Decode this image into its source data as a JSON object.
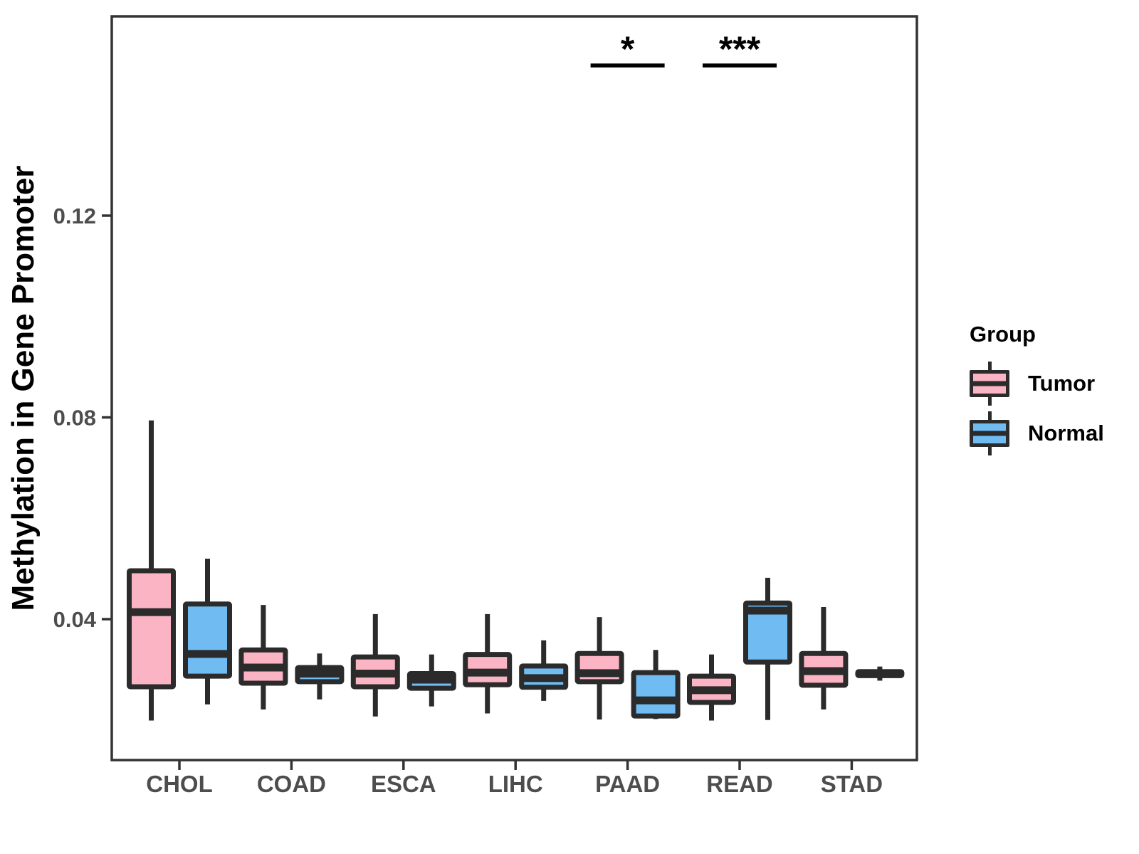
{
  "chart_data": {
    "type": "boxplot",
    "title": "",
    "xlabel": "",
    "ylabel": "Methylation in Gene Promoter",
    "categories": [
      "CHOL",
      "COAD",
      "ESCA",
      "LIHC",
      "PAAD",
      "READ",
      "STAD"
    ],
    "yticks": [
      0.04,
      0.08,
      0.12
    ],
    "ylim": [
      0.012,
      0.16
    ],
    "grid": false,
    "legend": {
      "title": "Group",
      "position": "right",
      "entries": [
        {
          "label": "Tumor",
          "color": "#FAB4C4"
        },
        {
          "label": "Normal",
          "color": "#6FBBF2"
        }
      ]
    },
    "series": [
      {
        "name": "Tumor",
        "color": "#FAB4C4",
        "boxes": [
          {
            "category": "CHOL",
            "low": 0.0199,
            "q1": 0.0266,
            "median": 0.0414,
            "q3": 0.0496,
            "high": 0.0794
          },
          {
            "category": "COAD",
            "low": 0.0221,
            "q1": 0.0273,
            "median": 0.0304,
            "q3": 0.0339,
            "high": 0.0428
          },
          {
            "category": "ESCA",
            "low": 0.0207,
            "q1": 0.0266,
            "median": 0.0292,
            "q3": 0.0325,
            "high": 0.041
          },
          {
            "category": "LIHC",
            "low": 0.0213,
            "q1": 0.027,
            "median": 0.0294,
            "q3": 0.033,
            "high": 0.041
          },
          {
            "category": "PAAD",
            "low": 0.0201,
            "q1": 0.0276,
            "median": 0.0293,
            "q3": 0.0332,
            "high": 0.0404
          },
          {
            "category": "READ",
            "low": 0.0199,
            "q1": 0.0235,
            "median": 0.0259,
            "q3": 0.0287,
            "high": 0.033
          },
          {
            "category": "STAD",
            "low": 0.0221,
            "q1": 0.0269,
            "median": 0.0297,
            "q3": 0.0332,
            "high": 0.0424
          }
        ]
      },
      {
        "name": "Normal",
        "color": "#6FBBF2",
        "boxes": [
          {
            "category": "CHOL",
            "low": 0.0231,
            "q1": 0.0287,
            "median": 0.0331,
            "q3": 0.043,
            "high": 0.052
          },
          {
            "category": "COAD",
            "low": 0.0241,
            "q1": 0.0276,
            "median": 0.0292,
            "q3": 0.0304,
            "high": 0.0332
          },
          {
            "category": "ESCA",
            "low": 0.0227,
            "q1": 0.0263,
            "median": 0.028,
            "q3": 0.0292,
            "high": 0.033
          },
          {
            "category": "LIHC",
            "low": 0.0238,
            "q1": 0.0265,
            "median": 0.0283,
            "q3": 0.0307,
            "high": 0.0358
          },
          {
            "category": "PAAD",
            "low": 0.0202,
            "q1": 0.0208,
            "median": 0.0239,
            "q3": 0.0294,
            "high": 0.0339
          },
          {
            "category": "READ",
            "low": 0.02,
            "q1": 0.0315,
            "median": 0.0417,
            "q3": 0.0432,
            "high": 0.0482
          },
          {
            "category": "STAD",
            "low": 0.0278,
            "q1": 0.0288,
            "median": 0.0292,
            "q3": 0.0296,
            "high": 0.0306
          }
        ]
      }
    ],
    "significance": [
      {
        "category": "PAAD",
        "label": "*"
      },
      {
        "category": "READ",
        "label": "***"
      }
    ],
    "style": {
      "box_stroke": "#2B2B2B",
      "axis_color": "#333333",
      "tick_label_color": "#4D4D4D",
      "annotation_color": "#000000"
    }
  }
}
